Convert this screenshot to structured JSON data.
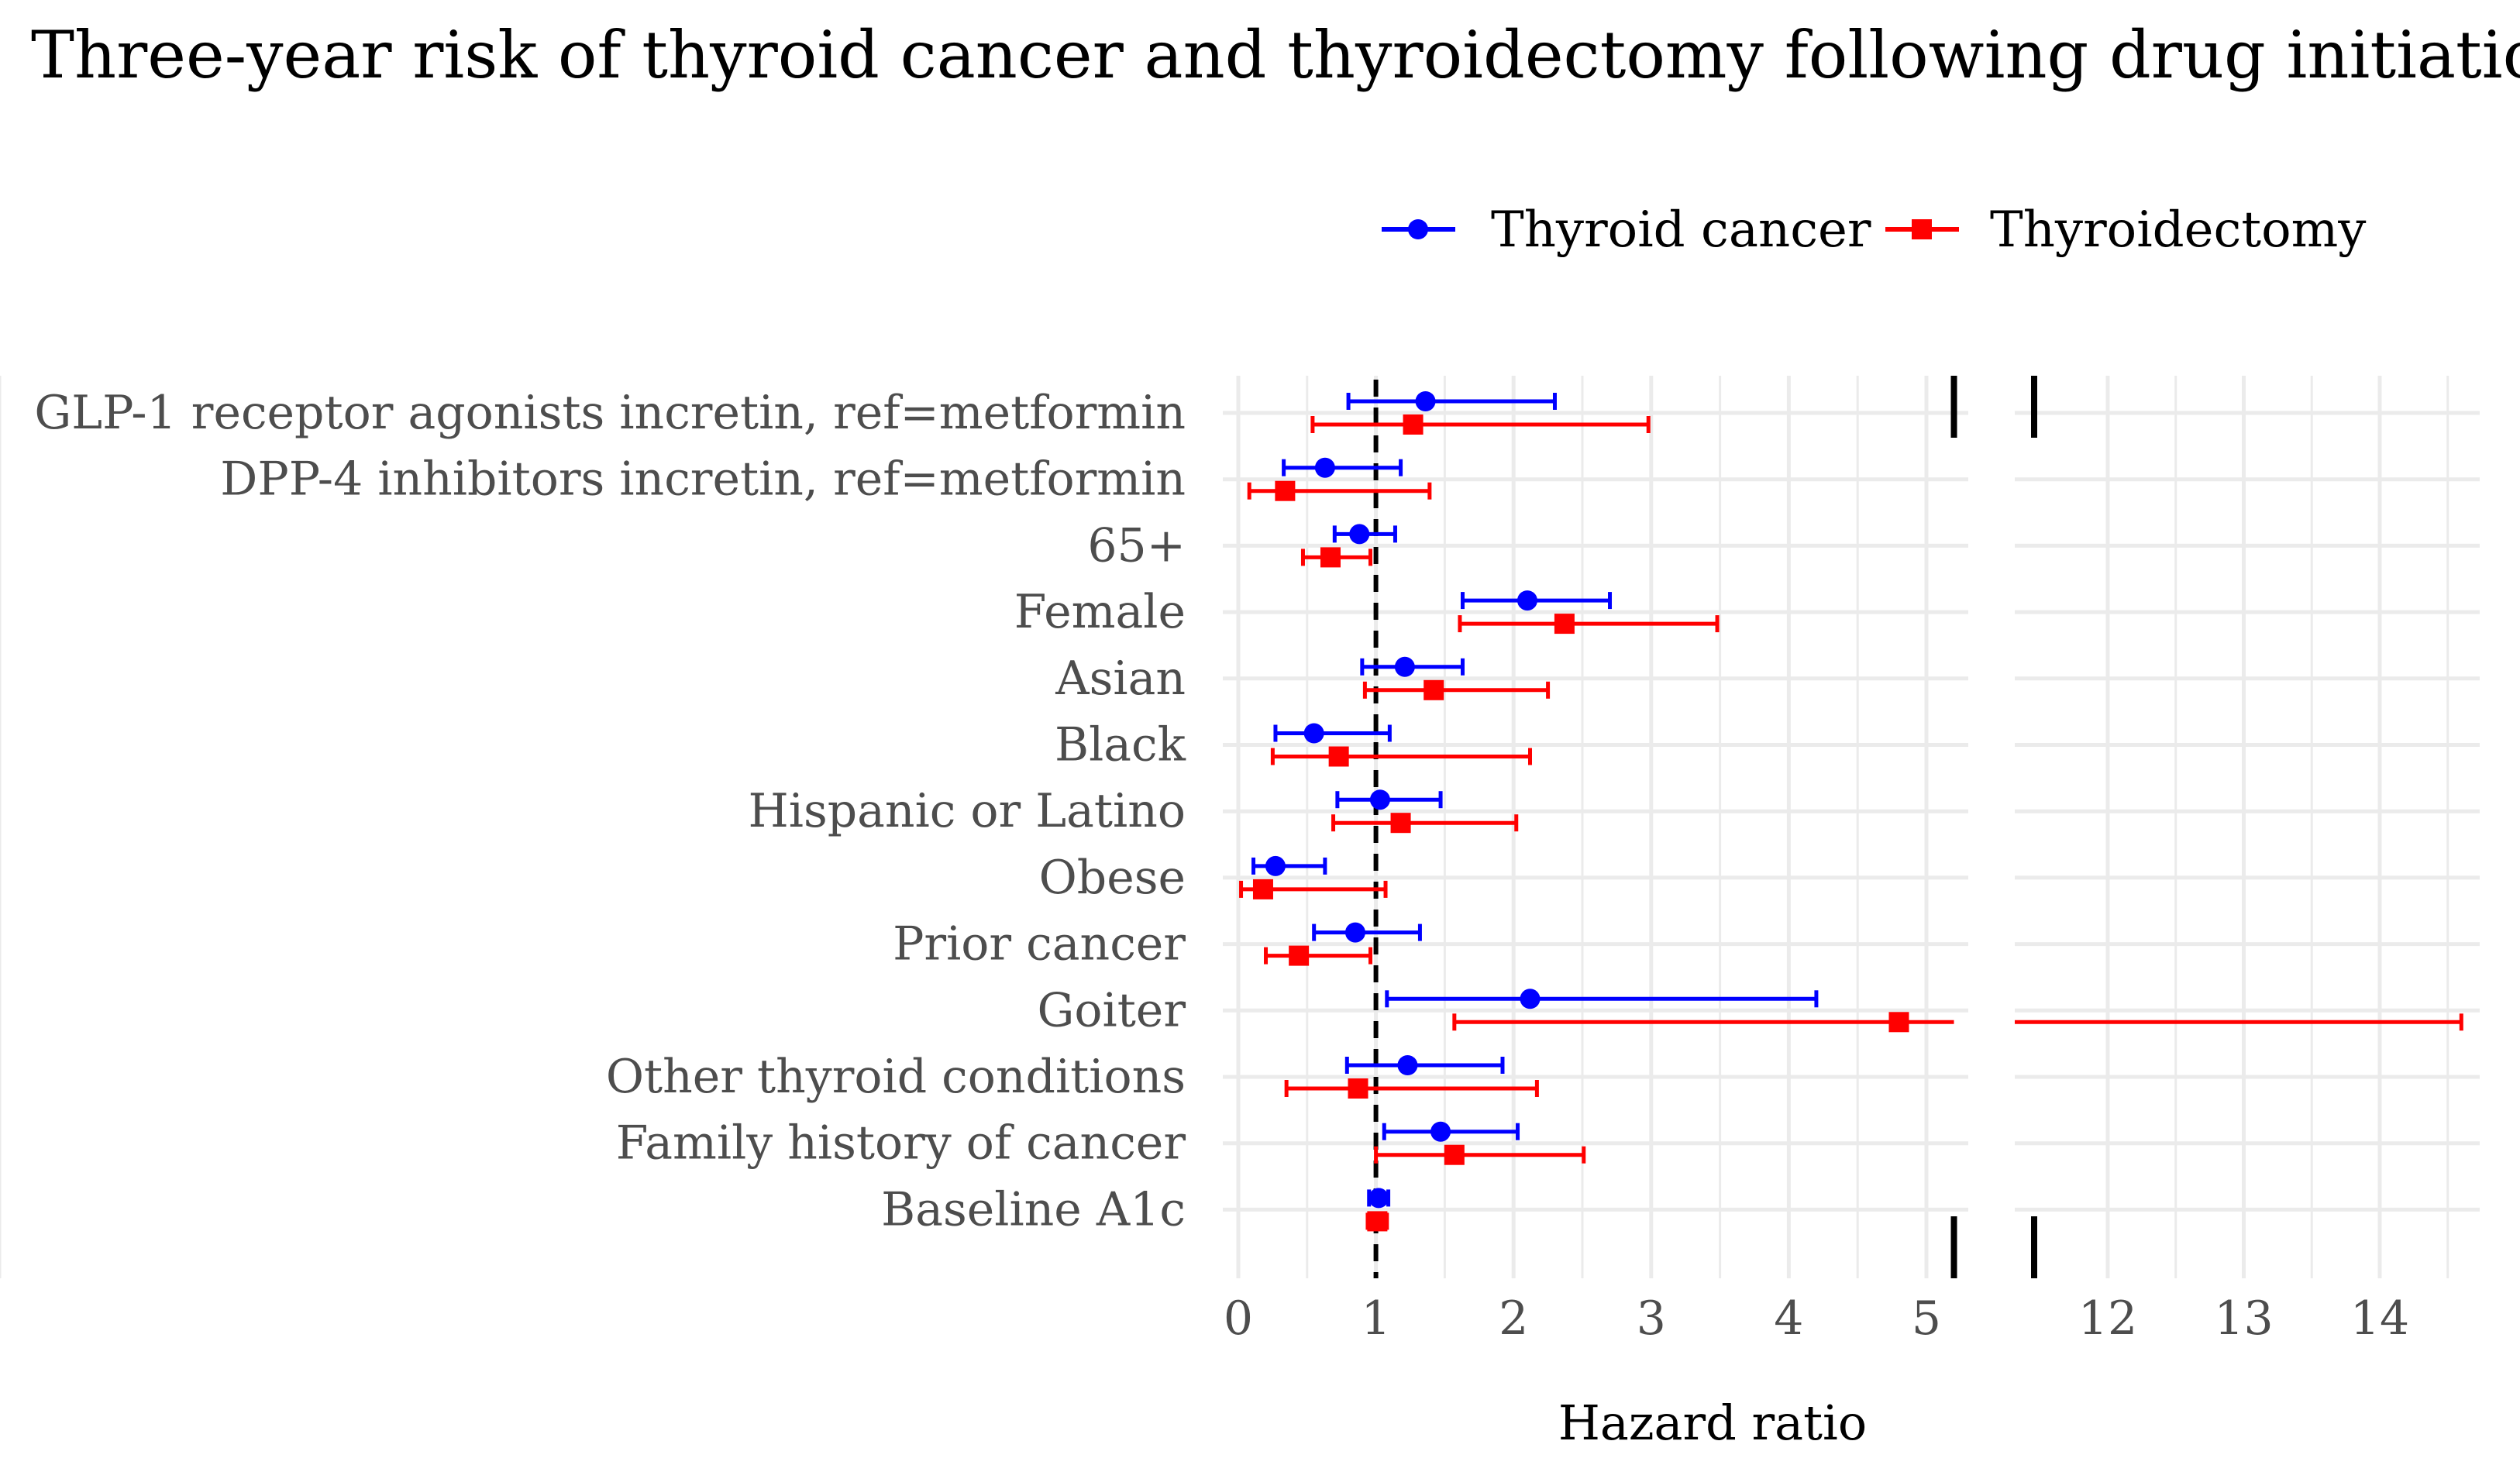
{
  "chart_data": {
    "type": "forest",
    "title": "Three-year risk of thyroid cancer and thyroidectomy following drug initiation",
    "xlabel": "Hazard ratio",
    "reference_line": 1,
    "x_axis_break": [
      5.2,
      11.6
    ],
    "xlim_segments": [
      [
        0,
        5.2
      ],
      [
        11.6,
        14.6
      ]
    ],
    "x_ticks": [
      0,
      1,
      2,
      3,
      4,
      5,
      12,
      13,
      14
    ],
    "grid": true,
    "legend_position": "top-right",
    "categories": [
      "GLP-1 receptor agonists incretin, ref=metformin",
      "DPP-4 inhibitors incretin, ref=metformin",
      "65+",
      "Female",
      "Asian",
      "Black",
      "Hispanic or Latino",
      "Obese",
      "Prior cancer",
      "Goiter",
      "Other thyroid conditions",
      "Family history of cancer",
      "Baseline A1c"
    ],
    "series": [
      {
        "name": "Thyroid cancer",
        "color": "#0000ff",
        "marker": "circle",
        "estimates": [
          1.36,
          0.63,
          0.88,
          2.1,
          1.21,
          0.55,
          1.03,
          0.27,
          0.85,
          2.12,
          1.23,
          1.47,
          1.02
        ],
        "lower": [
          0.8,
          0.33,
          0.7,
          1.63,
          0.9,
          0.27,
          0.72,
          0.11,
          0.55,
          1.08,
          0.79,
          1.06,
          0.95
        ],
        "upper": [
          2.3,
          1.18,
          1.14,
          2.7,
          1.63,
          1.1,
          1.47,
          0.63,
          1.32,
          4.2,
          1.92,
          2.03,
          1.09
        ]
      },
      {
        "name": "Thyroidectomy",
        "color": "#ff0000",
        "marker": "square",
        "estimates": [
          1.27,
          0.34,
          0.67,
          2.37,
          1.42,
          0.73,
          1.18,
          0.18,
          0.44,
          4.8,
          0.87,
          1.57,
          1.01
        ],
        "lower": [
          0.54,
          0.08,
          0.47,
          1.61,
          0.92,
          0.25,
          0.69,
          0.02,
          0.2,
          1.57,
          0.35,
          1.0,
          0.94
        ],
        "upper": [
          2.98,
          1.39,
          0.96,
          3.48,
          2.25,
          2.12,
          2.02,
          1.07,
          0.96,
          14.6,
          2.17,
          2.51,
          1.08
        ]
      }
    ]
  }
}
